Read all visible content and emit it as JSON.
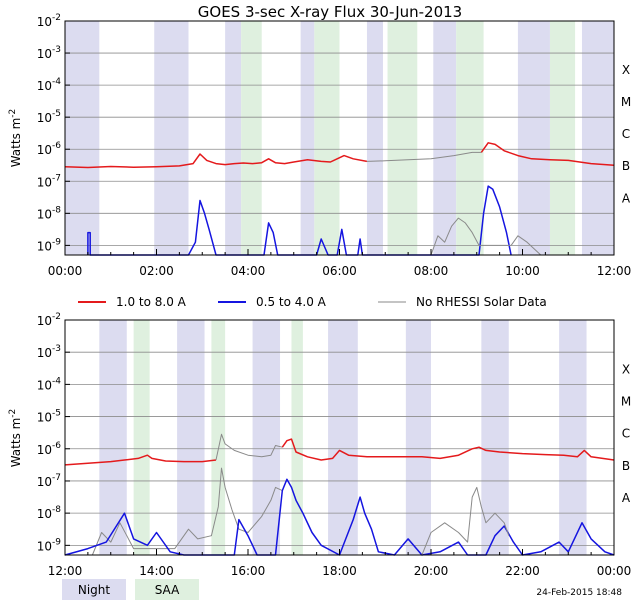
{
  "title": "GOES 3-sec X-ray Flux   30-Jun-2013",
  "ylabel": "Watts m",
  "ylabel_exp": "-2",
  "y_ticks": [
    {
      "base": "10",
      "exp": "-2",
      "log": -2
    },
    {
      "base": "10",
      "exp": "-3",
      "log": -3
    },
    {
      "base": "10",
      "exp": "-4",
      "log": -4
    },
    {
      "base": "10",
      "exp": "-5",
      "log": -5
    },
    {
      "base": "10",
      "exp": "-6",
      "log": -6
    },
    {
      "base": "10",
      "exp": "-7",
      "log": -7
    },
    {
      "base": "10",
      "exp": "-8",
      "log": -8
    },
    {
      "base": "10",
      "exp": "-9",
      "log": -9
    }
  ],
  "flare_classes": [
    {
      "label": "X",
      "log": -3.5
    },
    {
      "label": "M",
      "log": -4.5
    },
    {
      "label": "C",
      "log": -5.5
    },
    {
      "label": "B",
      "log": -6.5
    },
    {
      "label": "A",
      "log": -7.5
    }
  ],
  "legend": [
    {
      "label": "1.0 to 8.0 A",
      "color": "#e41a1c"
    },
    {
      "label": "0.5 to 4.0 A",
      "color": "#1515e0"
    },
    {
      "label": "No RHESSI Solar Data",
      "color": "#8a8a8a"
    }
  ],
  "bottom_legend": [
    {
      "label": "Night",
      "color": "#dcdcf0"
    },
    {
      "label": "SAA",
      "color": "#dff0df"
    }
  ],
  "timestamp": "24-Feb-2015 18:48",
  "chart_data": [
    {
      "type": "line",
      "panel": "top",
      "x_unit": "hours UT",
      "xlim": [
        0,
        12
      ],
      "ylim_log10": [
        -9.3,
        -2
      ],
      "x_ticks": [
        "00:00",
        "02:00",
        "04:00",
        "06:00",
        "08:00",
        "10:00",
        "12:00"
      ],
      "night_intervals": [
        [
          0,
          0.75
        ],
        [
          1.95,
          2.7
        ],
        [
          3.5,
          3.85
        ],
        [
          5.15,
          5.45
        ],
        [
          6.6,
          6.95
        ],
        [
          8.05,
          8.55
        ],
        [
          9.9,
          10.6
        ],
        [
          11.3,
          12
        ]
      ],
      "saa_intervals": [
        [
          3.85,
          4.3
        ],
        [
          5.45,
          6.0
        ],
        [
          7.05,
          7.7
        ],
        [
          8.55,
          9.15
        ],
        [
          10.6,
          11.15
        ]
      ],
      "series": [
        {
          "name": "1.0 to 8.0 A",
          "color": "#e41a1c",
          "points": [
            [
              0,
              -6.55
            ],
            [
              0.5,
              -6.57
            ],
            [
              1.0,
              -6.54
            ],
            [
              1.5,
              -6.56
            ],
            [
              2.0,
              -6.55
            ],
            [
              2.5,
              -6.52
            ],
            [
              2.8,
              -6.45
            ],
            [
              2.95,
              -6.15
            ],
            [
              3.1,
              -6.35
            ],
            [
              3.3,
              -6.45
            ],
            [
              3.5,
              -6.48
            ],
            [
              3.7,
              -6.45
            ],
            [
              3.9,
              -6.43
            ],
            [
              4.1,
              -6.45
            ],
            [
              4.3,
              -6.42
            ],
            [
              4.45,
              -6.3
            ],
            [
              4.6,
              -6.42
            ],
            [
              4.8,
              -6.45
            ],
            [
              5.0,
              -6.4
            ],
            [
              5.3,
              -6.33
            ],
            [
              5.6,
              -6.38
            ],
            [
              5.8,
              -6.4
            ],
            [
              5.95,
              -6.3
            ],
            [
              6.1,
              -6.2
            ],
            [
              6.3,
              -6.3
            ],
            [
              6.6,
              -6.38
            ]
          ]
        },
        {
          "name": "1.0 to 8.0 A",
          "color": "#e41a1c",
          "points": [
            [
              9.1,
              -6.1
            ],
            [
              9.25,
              -5.8
            ],
            [
              9.4,
              -5.85
            ],
            [
              9.6,
              -6.05
            ],
            [
              9.9,
              -6.2
            ],
            [
              10.2,
              -6.3
            ],
            [
              10.6,
              -6.33
            ],
            [
              11.0,
              -6.35
            ],
            [
              11.5,
              -6.45
            ],
            [
              12.0,
              -6.5
            ]
          ]
        },
        {
          "name": "No RHESSI Solar Data",
          "color": "#8a8a8a",
          "points": [
            [
              6.6,
              -6.38
            ],
            [
              7.0,
              -6.36
            ],
            [
              7.5,
              -6.33
            ],
            [
              8.0,
              -6.3
            ],
            [
              8.5,
              -6.2
            ],
            [
              8.9,
              -6.1
            ],
            [
              9.1,
              -6.1
            ]
          ]
        },
        {
          "name": "0.5 to 4.0 A",
          "color": "#1515e0",
          "points": [
            [
              0.5,
              -9.3
            ],
            [
              0.5,
              -8.6
            ],
            [
              0.55,
              -8.6
            ],
            [
              0.55,
              -9.3
            ],
            [
              2.7,
              -9.3
            ],
            [
              2.85,
              -8.9
            ],
            [
              2.95,
              -7.6
            ],
            [
              3.05,
              -8.0
            ],
            [
              3.15,
              -8.5
            ],
            [
              3.3,
              -9.3
            ],
            [
              4.35,
              -9.3
            ],
            [
              4.45,
              -8.3
            ],
            [
              4.55,
              -8.6
            ],
            [
              4.65,
              -9.3
            ],
            [
              5.5,
              -9.3
            ],
            [
              5.6,
              -8.8
            ],
            [
              5.75,
              -9.3
            ],
            [
              5.95,
              -9.3
            ],
            [
              6.05,
              -8.5
            ],
            [
              6.15,
              -9.3
            ],
            [
              6.4,
              -9.3
            ],
            [
              6.45,
              -8.8
            ],
            [
              6.5,
              -9.3
            ],
            [
              9.05,
              -9.3
            ],
            [
              9.15,
              -8.0
            ],
            [
              9.25,
              -7.15
            ],
            [
              9.35,
              -7.25
            ],
            [
              9.5,
              -7.8
            ],
            [
              9.65,
              -8.6
            ],
            [
              9.75,
              -9.3
            ]
          ]
        },
        {
          "name": "No RHESSI Solar Data",
          "color": "#8a8a8a",
          "points": [
            [
              8.0,
              -9.3
            ],
            [
              8.15,
              -8.7
            ],
            [
              8.3,
              -8.9
            ],
            [
              8.45,
              -8.4
            ],
            [
              8.6,
              -8.15
            ],
            [
              8.75,
              -8.3
            ],
            [
              8.9,
              -8.6
            ],
            [
              9.05,
              -9.0
            ],
            [
              9.75,
              -9.0
            ],
            [
              9.9,
              -8.7
            ],
            [
              10.1,
              -8.9
            ],
            [
              10.25,
              -9.1
            ],
            [
              10.4,
              -9.3
            ]
          ]
        }
      ]
    },
    {
      "type": "line",
      "panel": "bottom",
      "x_unit": "hours UT",
      "xlim": [
        12,
        24
      ],
      "ylim_log10": [
        -9.3,
        -2
      ],
      "x_ticks": [
        "12:00",
        "14:00",
        "16:00",
        "18:00",
        "20:00",
        "22:00",
        "00:00"
      ],
      "night_intervals": [
        [
          12.75,
          13.35
        ],
        [
          14.45,
          15.05
        ],
        [
          16.1,
          16.7
        ],
        [
          17.75,
          18.4
        ],
        [
          19.45,
          20.0
        ],
        [
          21.1,
          21.7
        ],
        [
          22.8,
          23.4
        ]
      ],
      "saa_intervals": [
        [
          13.5,
          13.85
        ],
        [
          15.2,
          15.5
        ],
        [
          16.95,
          17.2
        ]
      ],
      "series": [
        {
          "name": "1.0 to 8.0 A",
          "color": "#e41a1c",
          "points": [
            [
              12.0,
              -6.5
            ],
            [
              12.5,
              -6.45
            ],
            [
              13.0,
              -6.4
            ],
            [
              13.3,
              -6.35
            ],
            [
              13.6,
              -6.3
            ],
            [
              13.8,
              -6.2
            ],
            [
              13.9,
              -6.3
            ],
            [
              14.2,
              -6.38
            ],
            [
              14.6,
              -6.4
            ],
            [
              15.0,
              -6.4
            ],
            [
              15.3,
              -6.35
            ]
          ]
        },
        {
          "name": "No RHESSI Solar Data",
          "color": "#8a8a8a",
          "points": [
            [
              15.3,
              -6.35
            ],
            [
              15.42,
              -5.55
            ],
            [
              15.5,
              -5.85
            ],
            [
              15.7,
              -6.05
            ],
            [
              16.0,
              -6.2
            ],
            [
              16.3,
              -6.25
            ],
            [
              16.5,
              -6.2
            ],
            [
              16.6,
              -5.9
            ],
            [
              16.75,
              -5.95
            ]
          ]
        },
        {
          "name": "1.0 to 8.0 A",
          "color": "#e41a1c",
          "points": [
            [
              16.75,
              -5.95
            ],
            [
              16.85,
              -5.75
            ],
            [
              16.95,
              -5.7
            ],
            [
              17.05,
              -6.1
            ],
            [
              17.3,
              -6.25
            ],
            [
              17.6,
              -6.35
            ],
            [
              17.85,
              -6.3
            ],
            [
              18.0,
              -6.05
            ],
            [
              18.2,
              -6.2
            ],
            [
              18.6,
              -6.25
            ],
            [
              19.0,
              -6.25
            ],
            [
              19.4,
              -6.25
            ],
            [
              19.8,
              -6.25
            ],
            [
              20.2,
              -6.3
            ],
            [
              20.6,
              -6.2
            ],
            [
              20.9,
              -6.0
            ],
            [
              21.05,
              -5.95
            ],
            [
              21.2,
              -6.05
            ],
            [
              21.5,
              -6.1
            ],
            [
              22.0,
              -6.15
            ],
            [
              22.5,
              -6.18
            ],
            [
              22.9,
              -6.2
            ],
            [
              23.2,
              -6.25
            ],
            [
              23.35,
              -6.05
            ],
            [
              23.5,
              -6.25
            ],
            [
              24.0,
              -6.35
            ]
          ]
        },
        {
          "name": "No RHESSI Solar Data",
          "color": "#8a8a8a",
          "points": [
            [
              12.6,
              -9.3
            ],
            [
              12.8,
              -8.6
            ],
            [
              13.0,
              -8.9
            ],
            [
              13.2,
              -8.3
            ],
            [
              13.35,
              -8.7
            ],
            [
              13.5,
              -9.1
            ],
            [
              14.4,
              -9.1
            ],
            [
              14.7,
              -8.5
            ],
            [
              14.9,
              -8.8
            ],
            [
              15.2,
              -8.7
            ],
            [
              15.35,
              -7.8
            ],
            [
              15.42,
              -6.6
            ],
            [
              15.5,
              -7.2
            ],
            [
              15.65,
              -7.9
            ],
            [
              15.8,
              -8.5
            ],
            [
              16.0,
              -8.6
            ],
            [
              16.3,
              -8.1
            ],
            [
              16.5,
              -7.6
            ],
            [
              16.6,
              -7.2
            ],
            [
              16.75,
              -7.3
            ]
          ]
        },
        {
          "name": "0.5 to 4.0 A",
          "color": "#1515e0",
          "points": [
            [
              12.0,
              -9.3
            ],
            [
              12.5,
              -9.1
            ],
            [
              12.9,
              -8.9
            ],
            [
              13.3,
              -8.0
            ],
            [
              13.5,
              -8.8
            ],
            [
              13.8,
              -9.0
            ],
            [
              14.0,
              -8.6
            ],
            [
              14.3,
              -9.2
            ],
            [
              14.6,
              -9.3
            ],
            [
              15.7,
              -9.3
            ],
            [
              15.8,
              -8.2
            ],
            [
              16.0,
              -8.7
            ],
            [
              16.2,
              -9.3
            ],
            [
              16.6,
              -9.3
            ],
            [
              16.75,
              -7.3
            ],
            [
              16.85,
              -6.95
            ],
            [
              16.95,
              -7.2
            ],
            [
              17.05,
              -7.6
            ],
            [
              17.2,
              -8.0
            ],
            [
              17.4,
              -8.6
            ],
            [
              17.6,
              -9.0
            ],
            [
              18.0,
              -9.3
            ],
            [
              18.3,
              -8.2
            ],
            [
              18.45,
              -7.5
            ],
            [
              18.55,
              -8.0
            ],
            [
              18.7,
              -8.5
            ],
            [
              18.85,
              -9.2
            ],
            [
              19.2,
              -9.3
            ],
            [
              19.5,
              -8.8
            ],
            [
              19.8,
              -9.3
            ],
            [
              20.2,
              -9.2
            ],
            [
              20.6,
              -8.9
            ],
            [
              20.8,
              -9.3
            ],
            [
              21.2,
              -9.3
            ],
            [
              21.4,
              -8.7
            ],
            [
              21.6,
              -8.4
            ],
            [
              21.8,
              -8.9
            ],
            [
              22.0,
              -9.3
            ],
            [
              22.4,
              -9.2
            ],
            [
              22.8,
              -8.9
            ],
            [
              23.0,
              -9.2
            ],
            [
              23.3,
              -8.3
            ],
            [
              23.5,
              -8.8
            ],
            [
              23.8,
              -9.2
            ],
            [
              24.0,
              -9.3
            ]
          ]
        },
        {
          "name": "No RHESSI Solar Data",
          "color": "#8a8a8a",
          "points": [
            [
              19.8,
              -9.3
            ],
            [
              20.0,
              -8.6
            ],
            [
              20.3,
              -8.3
            ],
            [
              20.6,
              -8.6
            ],
            [
              20.8,
              -8.9
            ],
            [
              20.9,
              -7.5
            ],
            [
              21.0,
              -7.2
            ],
            [
              21.1,
              -7.8
            ],
            [
              21.2,
              -8.3
            ],
            [
              21.4,
              -8.0
            ],
            [
              21.6,
              -8.3
            ],
            [
              21.7,
              -8.7
            ]
          ]
        }
      ]
    }
  ]
}
